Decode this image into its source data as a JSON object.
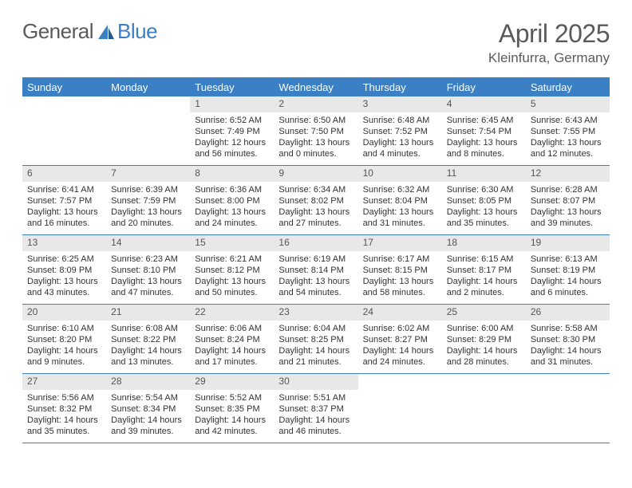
{
  "logo": {
    "text1": "General",
    "text2": "Blue"
  },
  "title": "April 2025",
  "location": "Kleinfurra, Germany",
  "colors": {
    "header_bg": "#3b7fc4",
    "header_text": "#ffffff",
    "daynum_bg": "#e8e8e8",
    "text": "#333333",
    "border": "#3b7fc4",
    "page_bg": "#ffffff",
    "logo_gray": "#5a5a5a",
    "logo_blue": "#3b7fc4"
  },
  "day_headers": [
    "Sunday",
    "Monday",
    "Tuesday",
    "Wednesday",
    "Thursday",
    "Friday",
    "Saturday"
  ],
  "weeks": [
    [
      null,
      null,
      {
        "n": "1",
        "sr": "Sunrise: 6:52 AM",
        "ss": "Sunset: 7:49 PM",
        "dl1": "Daylight: 12 hours",
        "dl2": "and 56 minutes."
      },
      {
        "n": "2",
        "sr": "Sunrise: 6:50 AM",
        "ss": "Sunset: 7:50 PM",
        "dl1": "Daylight: 13 hours",
        "dl2": "and 0 minutes."
      },
      {
        "n": "3",
        "sr": "Sunrise: 6:48 AM",
        "ss": "Sunset: 7:52 PM",
        "dl1": "Daylight: 13 hours",
        "dl2": "and 4 minutes."
      },
      {
        "n": "4",
        "sr": "Sunrise: 6:45 AM",
        "ss": "Sunset: 7:54 PM",
        "dl1": "Daylight: 13 hours",
        "dl2": "and 8 minutes."
      },
      {
        "n": "5",
        "sr": "Sunrise: 6:43 AM",
        "ss": "Sunset: 7:55 PM",
        "dl1": "Daylight: 13 hours",
        "dl2": "and 12 minutes."
      }
    ],
    [
      {
        "n": "6",
        "sr": "Sunrise: 6:41 AM",
        "ss": "Sunset: 7:57 PM",
        "dl1": "Daylight: 13 hours",
        "dl2": "and 16 minutes."
      },
      {
        "n": "7",
        "sr": "Sunrise: 6:39 AM",
        "ss": "Sunset: 7:59 PM",
        "dl1": "Daylight: 13 hours",
        "dl2": "and 20 minutes."
      },
      {
        "n": "8",
        "sr": "Sunrise: 6:36 AM",
        "ss": "Sunset: 8:00 PM",
        "dl1": "Daylight: 13 hours",
        "dl2": "and 24 minutes."
      },
      {
        "n": "9",
        "sr": "Sunrise: 6:34 AM",
        "ss": "Sunset: 8:02 PM",
        "dl1": "Daylight: 13 hours",
        "dl2": "and 27 minutes."
      },
      {
        "n": "10",
        "sr": "Sunrise: 6:32 AM",
        "ss": "Sunset: 8:04 PM",
        "dl1": "Daylight: 13 hours",
        "dl2": "and 31 minutes."
      },
      {
        "n": "11",
        "sr": "Sunrise: 6:30 AM",
        "ss": "Sunset: 8:05 PM",
        "dl1": "Daylight: 13 hours",
        "dl2": "and 35 minutes."
      },
      {
        "n": "12",
        "sr": "Sunrise: 6:28 AM",
        "ss": "Sunset: 8:07 PM",
        "dl1": "Daylight: 13 hours",
        "dl2": "and 39 minutes."
      }
    ],
    [
      {
        "n": "13",
        "sr": "Sunrise: 6:25 AM",
        "ss": "Sunset: 8:09 PM",
        "dl1": "Daylight: 13 hours",
        "dl2": "and 43 minutes."
      },
      {
        "n": "14",
        "sr": "Sunrise: 6:23 AM",
        "ss": "Sunset: 8:10 PM",
        "dl1": "Daylight: 13 hours",
        "dl2": "and 47 minutes."
      },
      {
        "n": "15",
        "sr": "Sunrise: 6:21 AM",
        "ss": "Sunset: 8:12 PM",
        "dl1": "Daylight: 13 hours",
        "dl2": "and 50 minutes."
      },
      {
        "n": "16",
        "sr": "Sunrise: 6:19 AM",
        "ss": "Sunset: 8:14 PM",
        "dl1": "Daylight: 13 hours",
        "dl2": "and 54 minutes."
      },
      {
        "n": "17",
        "sr": "Sunrise: 6:17 AM",
        "ss": "Sunset: 8:15 PM",
        "dl1": "Daylight: 13 hours",
        "dl2": "and 58 minutes."
      },
      {
        "n": "18",
        "sr": "Sunrise: 6:15 AM",
        "ss": "Sunset: 8:17 PM",
        "dl1": "Daylight: 14 hours",
        "dl2": "and 2 minutes."
      },
      {
        "n": "19",
        "sr": "Sunrise: 6:13 AM",
        "ss": "Sunset: 8:19 PM",
        "dl1": "Daylight: 14 hours",
        "dl2": "and 6 minutes."
      }
    ],
    [
      {
        "n": "20",
        "sr": "Sunrise: 6:10 AM",
        "ss": "Sunset: 8:20 PM",
        "dl1": "Daylight: 14 hours",
        "dl2": "and 9 minutes."
      },
      {
        "n": "21",
        "sr": "Sunrise: 6:08 AM",
        "ss": "Sunset: 8:22 PM",
        "dl1": "Daylight: 14 hours",
        "dl2": "and 13 minutes."
      },
      {
        "n": "22",
        "sr": "Sunrise: 6:06 AM",
        "ss": "Sunset: 8:24 PM",
        "dl1": "Daylight: 14 hours",
        "dl2": "and 17 minutes."
      },
      {
        "n": "23",
        "sr": "Sunrise: 6:04 AM",
        "ss": "Sunset: 8:25 PM",
        "dl1": "Daylight: 14 hours",
        "dl2": "and 21 minutes."
      },
      {
        "n": "24",
        "sr": "Sunrise: 6:02 AM",
        "ss": "Sunset: 8:27 PM",
        "dl1": "Daylight: 14 hours",
        "dl2": "and 24 minutes."
      },
      {
        "n": "25",
        "sr": "Sunrise: 6:00 AM",
        "ss": "Sunset: 8:29 PM",
        "dl1": "Daylight: 14 hours",
        "dl2": "and 28 minutes."
      },
      {
        "n": "26",
        "sr": "Sunrise: 5:58 AM",
        "ss": "Sunset: 8:30 PM",
        "dl1": "Daylight: 14 hours",
        "dl2": "and 31 minutes."
      }
    ],
    [
      {
        "n": "27",
        "sr": "Sunrise: 5:56 AM",
        "ss": "Sunset: 8:32 PM",
        "dl1": "Daylight: 14 hours",
        "dl2": "and 35 minutes."
      },
      {
        "n": "28",
        "sr": "Sunrise: 5:54 AM",
        "ss": "Sunset: 8:34 PM",
        "dl1": "Daylight: 14 hours",
        "dl2": "and 39 minutes."
      },
      {
        "n": "29",
        "sr": "Sunrise: 5:52 AM",
        "ss": "Sunset: 8:35 PM",
        "dl1": "Daylight: 14 hours",
        "dl2": "and 42 minutes."
      },
      {
        "n": "30",
        "sr": "Sunrise: 5:51 AM",
        "ss": "Sunset: 8:37 PM",
        "dl1": "Daylight: 14 hours",
        "dl2": "and 46 minutes."
      },
      null,
      null,
      null
    ]
  ]
}
